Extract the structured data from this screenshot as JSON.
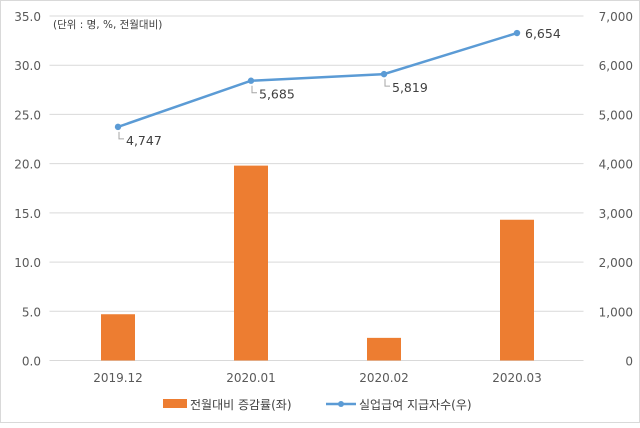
{
  "chart_data": {
    "type": "bar+line",
    "unit_note": "(단위 : 명, %, 전월대비)",
    "categories": [
      "2019.12",
      "2020.01",
      "2020.02",
      "2020.03"
    ],
    "series": [
      {
        "name": "전월대비 증감률(좌)",
        "type": "bar",
        "axis": "left",
        "color": "#ed7d31",
        "values": [
          4.7,
          19.8,
          2.3,
          14.3
        ]
      },
      {
        "name": "실업급여 지급자수(우)",
        "type": "line",
        "axis": "right",
        "color": "#5b9bd5",
        "values": [
          4747,
          5685,
          5819,
          6654
        ],
        "labels": [
          "4,747",
          "5,685",
          "5,819",
          "6,654"
        ]
      }
    ],
    "left_axis": {
      "ylim": [
        0,
        35
      ],
      "ticks": [
        "0.0",
        "5.0",
        "10.0",
        "15.0",
        "20.0",
        "25.0",
        "30.0",
        "35.0"
      ]
    },
    "right_axis": {
      "ylim": [
        0,
        7000
      ],
      "ticks": [
        "0",
        "1,000",
        "2,000",
        "3,000",
        "4,000",
        "5,000",
        "6,000",
        "7,000"
      ]
    },
    "grid": true,
    "legend": "bottom"
  }
}
